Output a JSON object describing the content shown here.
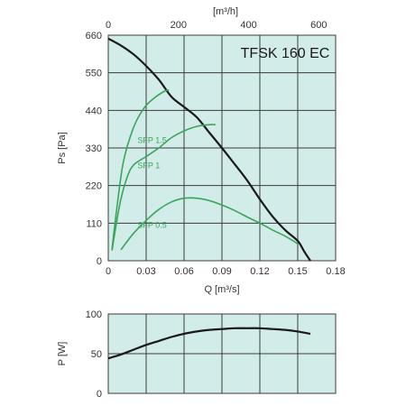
{
  "colors": {
    "plot_bg": "#d2ece9",
    "grid": "#3b3b3b",
    "main_curve": "#1a1a1a",
    "sfp_curve": "#3aa65a"
  },
  "chart_data": [
    {
      "type": "line",
      "title": "TFSK 160 EC",
      "xlabel": "Q [m³/s]",
      "ylabel": "Ps [Pa]",
      "x2label": "[m³/h]",
      "xlim": [
        0,
        0.18
      ],
      "ylim": [
        0,
        660
      ],
      "x2lim": [
        0,
        648
      ],
      "xticks": [
        "0",
        "0.03",
        "0.06",
        "0.09",
        "0.12",
        "0.15",
        "0.18"
      ],
      "yticks": [
        "0",
        "110",
        "220",
        "330",
        "440",
        "550",
        "660"
      ],
      "x2ticks": [
        "0",
        "200",
        "400",
        "600"
      ],
      "grid": true,
      "series": [
        {
          "x": [
            0,
            0.01,
            0.02,
            0.03,
            0.04,
            0.05,
            0.06,
            0.07,
            0.08,
            0.09,
            0.1,
            0.11,
            0.12,
            0.13,
            0.14,
            0.15,
            0.155,
            0.16
          ],
          "y": [
            650,
            630,
            604,
            570,
            530,
            480,
            450,
            420,
            375,
            330,
            283,
            235,
            180,
            130,
            90,
            58,
            28,
            0
          ]
        },
        {
          "name": "SFP 1.5",
          "x": [
            0.003,
            0.007,
            0.012,
            0.02,
            0.028,
            0.036,
            0.044,
            0.048
          ],
          "y": [
            35,
            160,
            290,
            390,
            445,
            475,
            495,
            500
          ]
        },
        {
          "name": "SFP 1",
          "x": [
            0.003,
            0.006,
            0.01,
            0.015,
            0.02,
            0.03,
            0.04,
            0.05,
            0.06,
            0.07,
            0.08,
            0.085
          ],
          "y": [
            30,
            100,
            180,
            245,
            280,
            305,
            330,
            360,
            380,
            393,
            398,
            398
          ]
        },
        {
          "name": "SFP 0.5",
          "x": [
            0.01,
            0.02,
            0.03,
            0.04,
            0.05,
            0.06,
            0.07,
            0.08,
            0.09,
            0.1,
            0.11,
            0.12,
            0.13,
            0.14,
            0.15
          ],
          "y": [
            32,
            80,
            118,
            150,
            172,
            183,
            183,
            176,
            163,
            147,
            128,
            110,
            90,
            72,
            50
          ]
        }
      ]
    },
    {
      "type": "line",
      "xlabel": "",
      "ylabel": "P [W]",
      "xlim": [
        0,
        0.18
      ],
      "ylim": [
        0,
        100
      ],
      "yticks": [
        "0",
        "50",
        "100"
      ],
      "grid": true,
      "series": [
        {
          "x": [
            0,
            0.01,
            0.02,
            0.03,
            0.04,
            0.05,
            0.06,
            0.07,
            0.08,
            0.09,
            0.1,
            0.11,
            0.12,
            0.13,
            0.14,
            0.15,
            0.16
          ],
          "y": [
            44,
            49,
            55,
            61,
            66,
            71,
            75,
            78,
            80,
            81,
            82,
            82,
            82,
            81,
            80,
            78,
            75
          ]
        }
      ]
    }
  ]
}
